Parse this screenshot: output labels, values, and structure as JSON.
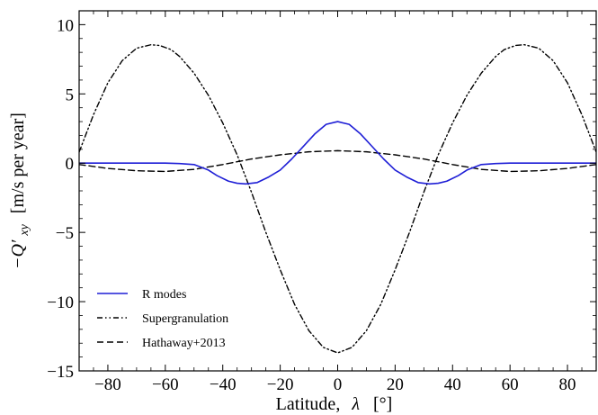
{
  "chart_data": {
    "type": "line",
    "xlabel": "Latitude,",
    "xlabel_symbol": "λ",
    "xlabel_unit": "[°]",
    "ylabel_symbol": "−Q′",
    "ylabel_subscript": "xy",
    "ylabel_unit": "[m/s per year]",
    "xlim": [
      -90,
      90
    ],
    "ylim": [
      -15,
      11
    ],
    "xticks": [
      -80,
      -60,
      -40,
      -20,
      0,
      20,
      40,
      60,
      80
    ],
    "xtick_labels": [
      "−80",
      "−60",
      "−40",
      "−20",
      "0",
      "20",
      "40",
      "60",
      "80"
    ],
    "yticks": [
      -15,
      -10,
      -5,
      0,
      5,
      10
    ],
    "ytick_labels": [
      "−15",
      "−10",
      "−5",
      "0",
      "5",
      "10"
    ],
    "grid": false,
    "legend_position": "bottom-left",
    "series": [
      {
        "name": "R modes",
        "color": "#1f1fd6",
        "dash": "solid",
        "x": [
          -90,
          -80,
          -70,
          -60,
          -55,
          -50,
          -45,
          -42,
          -38,
          -35,
          -32,
          -28,
          -24,
          -20,
          -16,
          -12,
          -8,
          -4,
          0,
          4,
          8,
          12,
          16,
          20,
          24,
          28,
          32,
          35,
          38,
          42,
          45,
          50,
          55,
          60,
          70,
          80,
          90
        ],
        "y": [
          0,
          0,
          0,
          0,
          -0.03,
          -0.1,
          -0.5,
          -0.9,
          -1.3,
          -1.45,
          -1.5,
          -1.4,
          -1.0,
          -0.5,
          0.3,
          1.2,
          2.1,
          2.8,
          3.0,
          2.8,
          2.1,
          1.2,
          0.3,
          -0.5,
          -1.0,
          -1.4,
          -1.5,
          -1.45,
          -1.3,
          -0.9,
          -0.5,
          -0.1,
          -0.03,
          0,
          0,
          0,
          0
        ]
      },
      {
        "name": "Supergranulation",
        "color": "#000000",
        "dash": "dashdotdot",
        "x": [
          -90,
          -85,
          -80,
          -75,
          -70,
          -65,
          -62,
          -58,
          -55,
          -50,
          -45,
          -40,
          -35,
          -30,
          -25,
          -20,
          -15,
          -10,
          -5,
          0,
          5,
          10,
          15,
          20,
          25,
          30,
          35,
          40,
          45,
          50,
          55,
          58,
          62,
          65,
          70,
          75,
          80,
          85,
          90
        ],
        "y": [
          0.8,
          3.5,
          5.8,
          7.4,
          8.3,
          8.55,
          8.5,
          8.2,
          7.7,
          6.5,
          4.9,
          2.9,
          0.6,
          -2.1,
          -5.0,
          -7.7,
          -10.2,
          -12.1,
          -13.3,
          -13.7,
          -13.3,
          -12.1,
          -10.2,
          -7.7,
          -5.0,
          -2.1,
          0.6,
          2.9,
          4.9,
          6.5,
          7.7,
          8.2,
          8.5,
          8.55,
          8.3,
          7.4,
          5.8,
          3.5,
          0.8
        ]
      },
      {
        "name": "Hathaway+2013",
        "color": "#000000",
        "dash": "dashed",
        "x": [
          -90,
          -80,
          -70,
          -60,
          -50,
          -40,
          -30,
          -20,
          -10,
          0,
          10,
          20,
          30,
          40,
          50,
          60,
          70,
          80,
          90
        ],
        "y": [
          -0.1,
          -0.38,
          -0.55,
          -0.6,
          -0.45,
          -0.1,
          0.3,
          0.6,
          0.82,
          0.9,
          0.82,
          0.6,
          0.3,
          -0.1,
          -0.45,
          -0.6,
          -0.55,
          -0.38,
          -0.1
        ]
      }
    ]
  }
}
